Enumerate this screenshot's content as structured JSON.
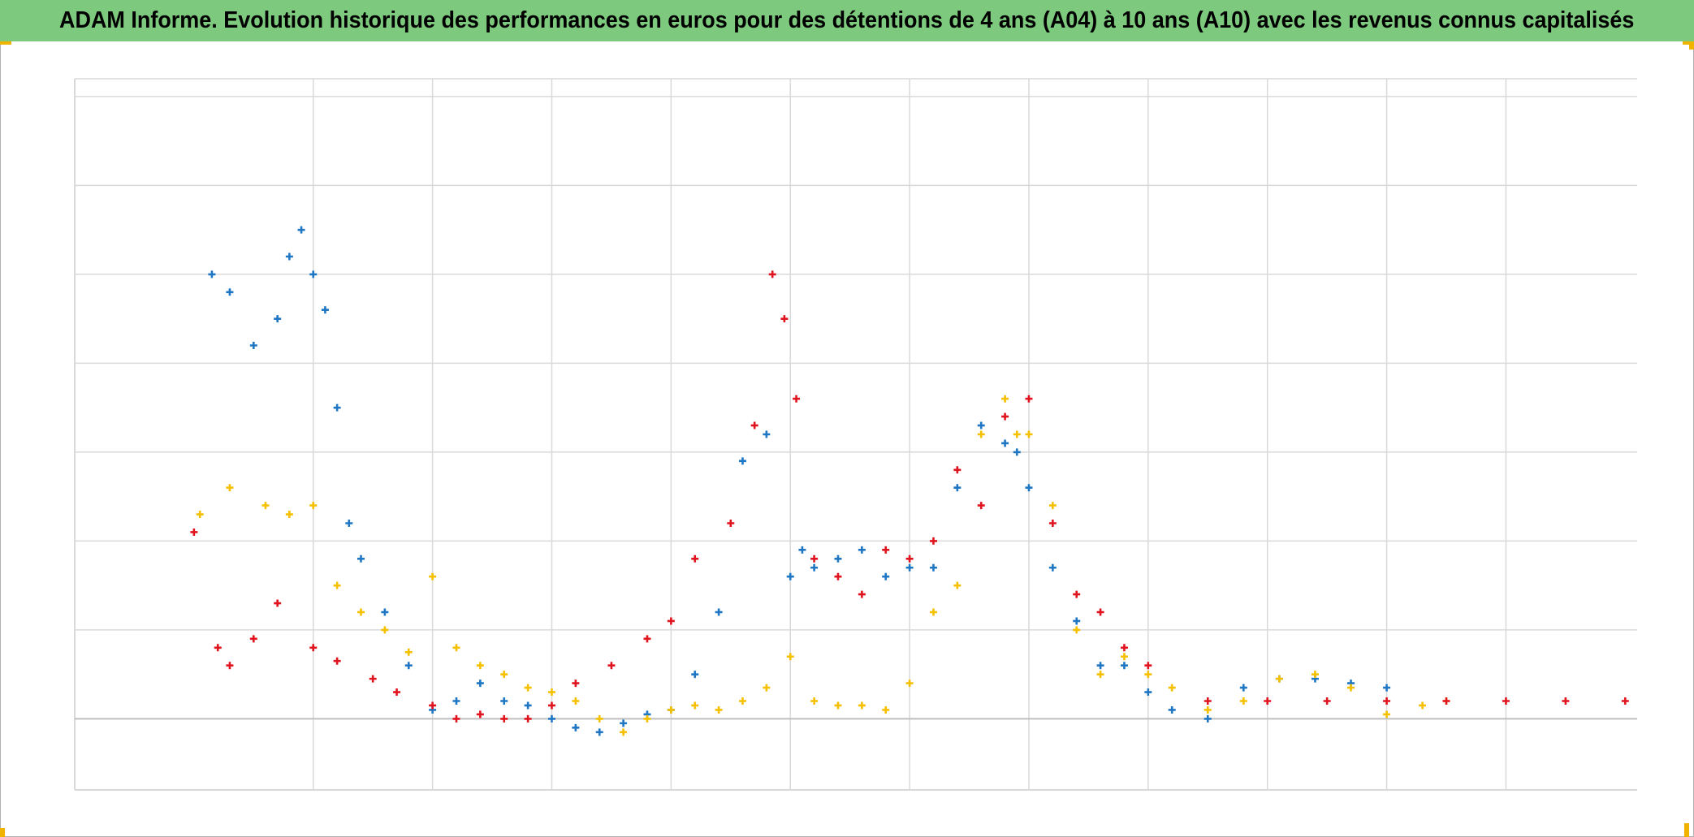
{
  "title": "ADAM Informe. Evolution historique des performances en euros pour des détentions de 4 ans (A04) à 10 ans (A10) avec les revenus connus capitalisés",
  "colors": {
    "title_background": "#7dc97d",
    "corner_marks": "#f0b400",
    "grid": "#d9d9d9",
    "baseline": "#bfbfbf"
  },
  "chart_data": {
    "type": "scatter",
    "marker": "plus",
    "title": "ADAM Informe. Evolution historique des performances en euros pour des détentions de 4 ans (A04) à 10 ans (A10) avec les revenus connus capitalisés",
    "xlabel": "",
    "ylabel": "",
    "tick_labels_shown": false,
    "grid": true,
    "legend": "none",
    "xlim": [
      -1,
      12.1
    ],
    "ylim": [
      -0.8,
      7.2
    ],
    "x_gridlines": [
      1,
      2,
      3,
      4,
      5,
      6,
      7,
      8,
      9,
      10,
      11
    ],
    "y_gridlines": [
      1,
      2,
      3,
      4,
      5,
      6,
      7
    ],
    "baseline_y": 0,
    "series": [
      {
        "color": "#1f77c4",
        "x": [
          0.15,
          0.3,
          0.5,
          0.7,
          0.8,
          0.9,
          1.0,
          1.1,
          1.2,
          1.3,
          1.4,
          1.6,
          1.8,
          2.0,
          2.2,
          2.4,
          2.6,
          2.8,
          3.0,
          3.2,
          3.4,
          3.6,
          3.8,
          4.0,
          4.2,
          4.4,
          4.6,
          4.8,
          5.0,
          5.1,
          5.2,
          5.4,
          5.6,
          5.8,
          6.0,
          6.2,
          6.4,
          6.6,
          6.8,
          6.9,
          7.0,
          7.2,
          7.4,
          7.6,
          7.8,
          8.0,
          8.2,
          8.5,
          8.8,
          9.1,
          9.4,
          9.7,
          10.0
        ],
        "y": [
          5.0,
          4.8,
          4.2,
          4.5,
          5.2,
          5.5,
          5.0,
          4.6,
          3.5,
          2.2,
          1.8,
          1.2,
          0.6,
          0.1,
          0.2,
          0.4,
          0.2,
          0.15,
          0.0,
          -0.1,
          -0.15,
          -0.05,
          0.05,
          0.1,
          0.5,
          1.2,
          2.9,
          3.2,
          1.6,
          1.9,
          1.7,
          1.8,
          1.9,
          1.6,
          1.7,
          1.7,
          2.6,
          3.3,
          3.1,
          3.0,
          2.6,
          1.7,
          1.1,
          0.6,
          0.6,
          0.3,
          0.1,
          0.0,
          0.35,
          0.45,
          0.45,
          0.4,
          0.35
        ]
      },
      {
        "color": "#f5c000",
        "x": [
          0.05,
          0.3,
          0.6,
          0.8,
          1.0,
          1.2,
          1.4,
          1.6,
          1.8,
          2.0,
          2.2,
          2.4,
          2.6,
          2.8,
          3.0,
          3.2,
          3.4,
          3.6,
          3.8,
          4.0,
          4.2,
          4.4,
          4.6,
          4.8,
          5.0,
          5.2,
          5.4,
          5.6,
          5.8,
          6.0,
          6.2,
          6.4,
          6.6,
          6.8,
          6.9,
          7.0,
          7.2,
          7.4,
          7.6,
          7.8,
          8.0,
          8.2,
          8.5,
          8.8,
          9.1,
          9.4,
          9.7,
          10.0,
          10.3,
          10.5
        ],
        "y": [
          2.3,
          2.6,
          2.4,
          2.3,
          2.4,
          1.5,
          1.2,
          1.0,
          0.75,
          1.6,
          0.8,
          0.6,
          0.5,
          0.35,
          0.3,
          0.2,
          0.0,
          -0.15,
          0.0,
          0.1,
          0.15,
          0.1,
          0.2,
          0.35,
          0.7,
          0.2,
          0.15,
          0.15,
          0.1,
          0.4,
          1.2,
          1.5,
          3.2,
          3.6,
          3.2,
          3.2,
          2.4,
          1.0,
          0.5,
          0.7,
          0.5,
          0.35,
          0.1,
          0.2,
          0.45,
          0.5,
          0.35,
          0.05,
          0.15,
          0.2
        ]
      },
      {
        "color": "#e0141e",
        "x": [
          0.0,
          0.2,
          0.3,
          0.5,
          0.7,
          1.0,
          1.2,
          1.5,
          1.7,
          2.0,
          2.2,
          2.4,
          2.6,
          2.8,
          3.0,
          3.2,
          3.5,
          3.8,
          4.0,
          4.2,
          4.5,
          4.7,
          4.85,
          4.95,
          5.05,
          5.2,
          5.4,
          5.6,
          5.8,
          6.0,
          6.2,
          6.4,
          6.6,
          6.8,
          7.0,
          7.2,
          7.4,
          7.6,
          7.8,
          8.0,
          8.5,
          9.0,
          9.5,
          10.0,
          10.5,
          11.0,
          11.5,
          12.0
        ],
        "y": [
          2.1,
          0.8,
          0.6,
          0.9,
          1.3,
          0.8,
          0.65,
          0.45,
          0.3,
          0.15,
          0.0,
          0.05,
          0.0,
          0.0,
          0.15,
          0.4,
          0.6,
          0.9,
          1.1,
          1.8,
          2.2,
          3.3,
          5.0,
          4.5,
          3.6,
          1.8,
          1.6,
          1.4,
          1.9,
          1.8,
          2.0,
          2.8,
          2.4,
          3.4,
          3.6,
          2.2,
          1.4,
          1.2,
          0.8,
          0.6,
          0.2,
          0.2,
          0.2,
          0.2,
          0.2,
          0.2,
          0.2,
          0.2
        ]
      }
    ]
  }
}
